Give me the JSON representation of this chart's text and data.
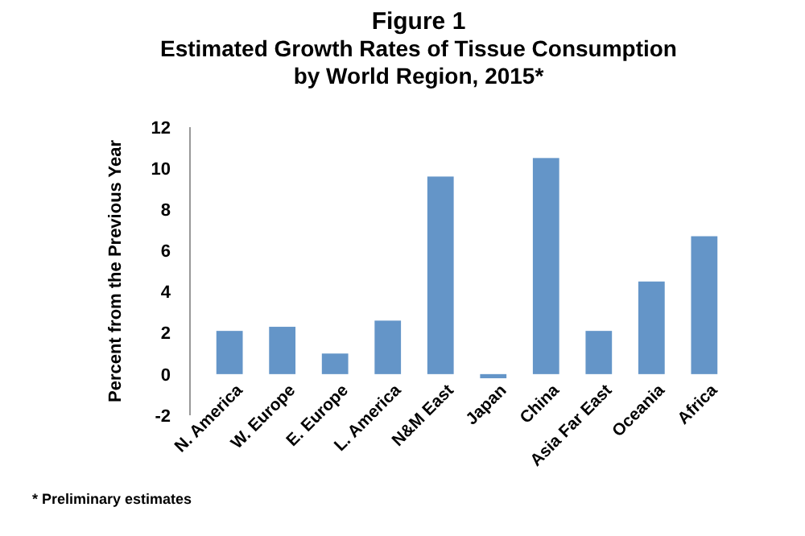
{
  "chart_data": {
    "type": "bar",
    "title": "Figure 1\nEstimated Growth Rates of Tissue Consumption\nby World Region, 2015*",
    "ylabel": "Percent from the Previous Year",
    "categories": [
      "N. America",
      "W. Europe",
      "E. Europe",
      "L. America",
      "N&M East",
      "Japan",
      "China",
      "Asia Far East",
      "Oceania",
      "Africa"
    ],
    "values": [
      2.1,
      2.3,
      1.0,
      2.6,
      9.6,
      -0.2,
      10.5,
      2.1,
      4.5,
      6.7
    ],
    "color": "#6495c8",
    "ylim": [
      -2,
      12
    ],
    "yticks": [
      -2,
      0,
      2,
      4,
      6,
      8,
      10,
      12
    ],
    "grid": false,
    "annotations": [
      "* Preliminary estimates"
    ]
  }
}
